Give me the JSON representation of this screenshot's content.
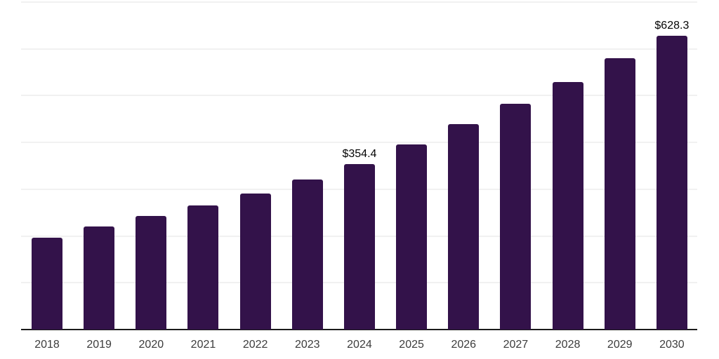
{
  "chart_data": {
    "type": "bar",
    "title": "",
    "categories": [
      "2018",
      "2019",
      "2020",
      "2021",
      "2022",
      "2023",
      "2024",
      "2025",
      "2026",
      "2027",
      "2028",
      "2029",
      "2030"
    ],
    "values": [
      196.5,
      220.4,
      242.3,
      265.4,
      291.2,
      321.2,
      354.4,
      396.0,
      438.7,
      482.0,
      528.5,
      580.2,
      628.3
    ],
    "data_labels": [
      {
        "index": 6,
        "text": "$354.4"
      },
      {
        "index": 12,
        "text": "$628.3"
      }
    ],
    "xlabel": "",
    "ylabel": "",
    "ylim": [
      0,
      700
    ],
    "gridline_step": 100,
    "grid": true,
    "legend": false,
    "bar_color": "#33124a",
    "axis_color": "#1b1b1b",
    "gridline_color": "#f1f1f1",
    "data_label_color": "#040404",
    "tick_label_color": "#3c3c3c"
  }
}
